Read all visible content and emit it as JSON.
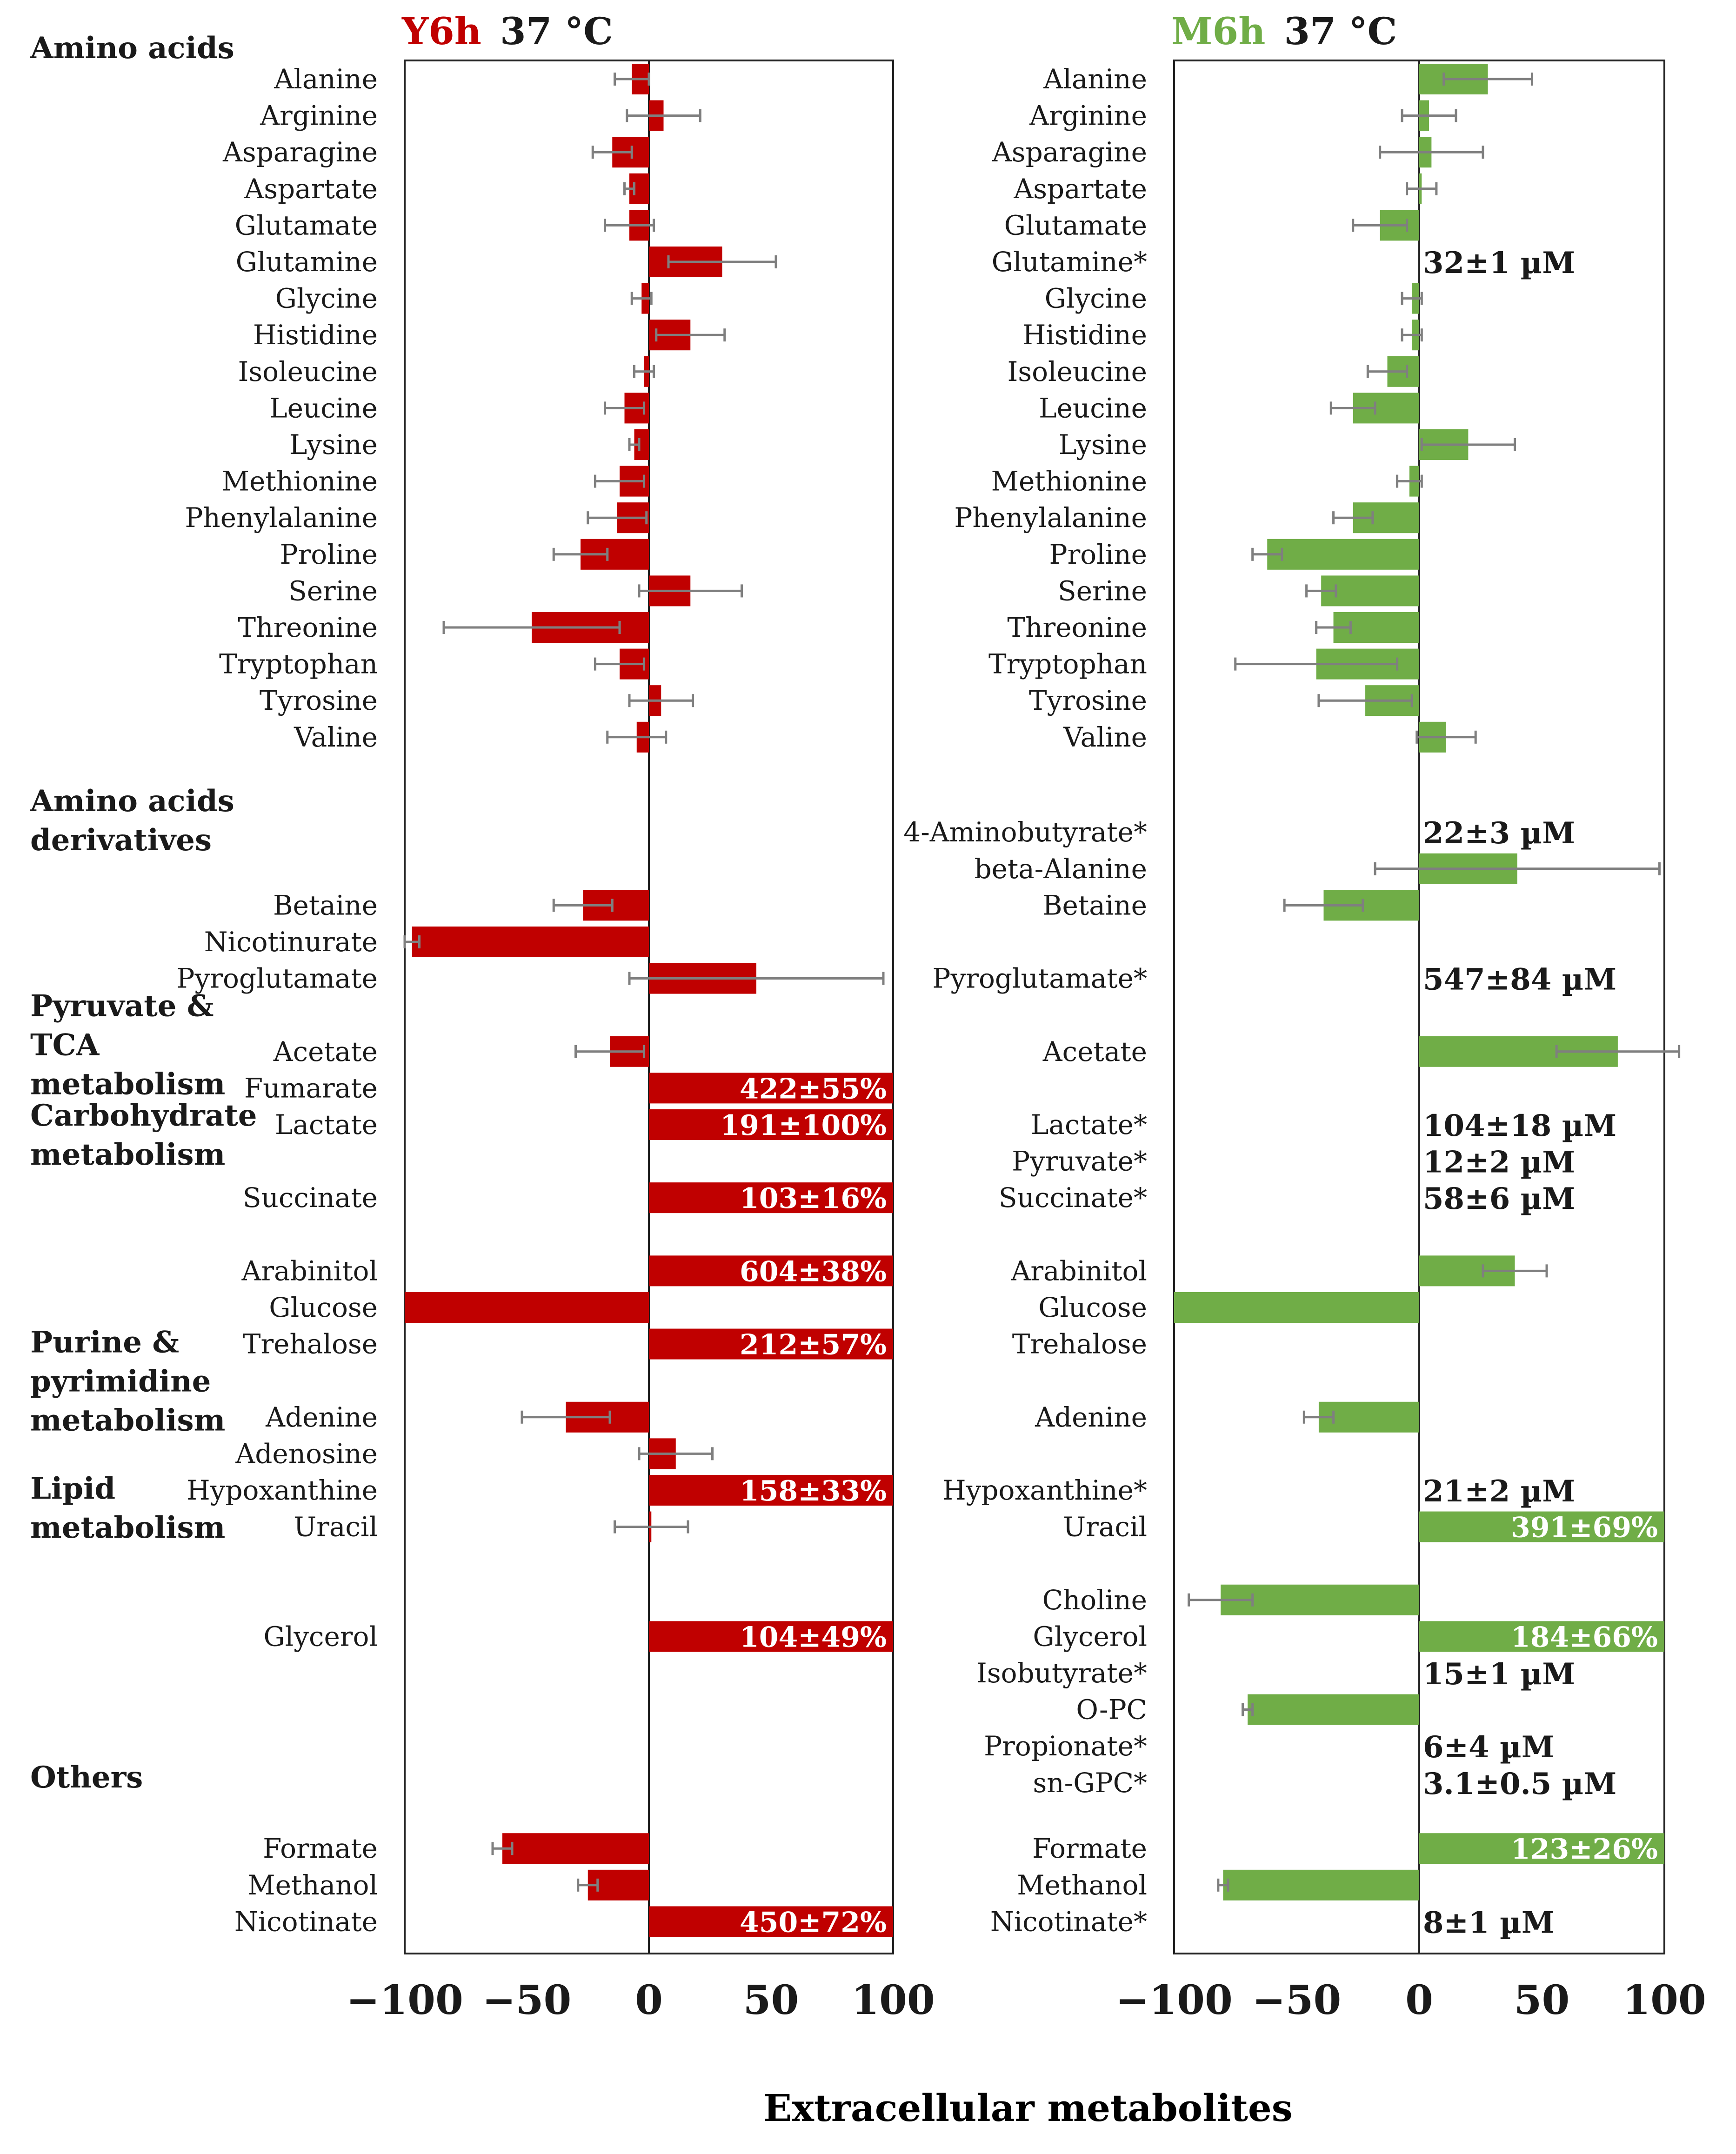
{
  "chart_data": [
    {
      "type": "bar",
      "orientation": "horizontal",
      "condition": "Y6h",
      "temperature": "37 °C",
      "color": "#c00000",
      "xlim": [
        -100,
        100
      ],
      "xticks": [
        "−100",
        "−50",
        "0",
        "50",
        "100"
      ],
      "groups": [
        {
          "title": [
            "Amino acids"
          ],
          "first_row": 0
        },
        {
          "title": [
            "Amino acids",
            "derivatives"
          ],
          "first_row": 20.6
        },
        {
          "title": [
            "Pyruvate &",
            "TCA",
            "metabolism"
          ],
          "first_row": 26.2
        },
        {
          "title": [
            "Carbohydrate",
            "metabolism"
          ],
          "first_row": 29.2
        },
        {
          "title": [
            "Purine &",
            "pyrimidine",
            "metabolism"
          ],
          "first_row": 35.4
        },
        {
          "title": [
            "Lipid",
            "metabolism"
          ],
          "first_row": 39.4
        },
        {
          "title": [
            "Others"
          ],
          "first_row": 47.3
        }
      ],
      "rows": [
        {
          "label": "Alanine",
          "row": 0,
          "value": -7,
          "error": 7
        },
        {
          "label": "Arginine",
          "row": 1,
          "value": 6,
          "error": 15
        },
        {
          "label": "Asparagine",
          "row": 2,
          "value": -15,
          "error": 8
        },
        {
          "label": "Aspartate",
          "row": 3,
          "value": -8,
          "error": 2
        },
        {
          "label": "Glutamate",
          "row": 4,
          "value": -8,
          "error": 10
        },
        {
          "label": "Glutamine",
          "row": 5,
          "value": 30,
          "error": 22
        },
        {
          "label": "Glycine",
          "row": 6,
          "value": -3,
          "error": 4
        },
        {
          "label": "Histidine",
          "row": 7,
          "value": 17,
          "error": 14
        },
        {
          "label": "Isoleucine",
          "row": 8,
          "value": -2,
          "error": 4
        },
        {
          "label": "Leucine",
          "row": 9,
          "value": -10,
          "error": 8
        },
        {
          "label": "Lysine",
          "row": 10,
          "value": -6,
          "error": 2
        },
        {
          "label": "Methionine",
          "row": 11,
          "value": -12,
          "error": 10
        },
        {
          "label": "Phenylalanine",
          "row": 12,
          "value": -13,
          "error": 12
        },
        {
          "label": "Proline",
          "row": 13,
          "value": -28,
          "error": 11
        },
        {
          "label": "Serine",
          "row": 14,
          "value": 17,
          "error": 21
        },
        {
          "label": "Threonine",
          "row": 15,
          "value": -48,
          "error": 36
        },
        {
          "label": "Tryptophan",
          "row": 16,
          "value": -12,
          "error": 10
        },
        {
          "label": "Tyrosine",
          "row": 17,
          "value": 5,
          "error": 13
        },
        {
          "label": "Valine",
          "row": 18,
          "value": -5,
          "error": 12
        },
        {
          "label": "Betaine",
          "row": 22.6,
          "value": -27,
          "error": 12
        },
        {
          "label": "Nicotinurate",
          "row": 23.6,
          "value": -97,
          "error": 3
        },
        {
          "label": "Pyroglutamate",
          "row": 24.6,
          "value": 44,
          "error": 52
        },
        {
          "label": "Acetate",
          "row": 26.6,
          "value": -16,
          "error": 14
        },
        {
          "label": "Fumarate",
          "row": 27.6,
          "value": 100,
          "clip_label": "422±55%"
        },
        {
          "label": "Lactate",
          "row": 28.6,
          "value": 100,
          "clip_label": "191±100%"
        },
        {
          "label": "Succinate",
          "row": 30.6,
          "value": 100,
          "clip_label": "103±16%"
        },
        {
          "label": "Arabinitol",
          "row": 32.6,
          "value": 100,
          "clip_label": "604±38%"
        },
        {
          "label": "Glucose",
          "row": 33.6,
          "value": -100,
          "error": 0
        },
        {
          "label": "Trehalose",
          "row": 34.6,
          "value": 100,
          "clip_label": "212±57%"
        },
        {
          "label": "Adenine",
          "row": 36.6,
          "value": -34,
          "error": 18
        },
        {
          "label": "Adenosine",
          "row": 37.6,
          "value": 11,
          "error": 15
        },
        {
          "label": "Hypoxanthine",
          "row": 38.6,
          "value": 100,
          "clip_label": "158±33%"
        },
        {
          "label": "Uracil",
          "row": 39.6,
          "value": 1,
          "error": 15
        },
        {
          "label": "Glycerol",
          "row": 42.6,
          "value": 100,
          "clip_label": "104±49%"
        },
        {
          "label": "Formate",
          "row": 48.4,
          "value": -60,
          "error": 4
        },
        {
          "label": "Methanol",
          "row": 49.4,
          "value": -25,
          "error": 4
        },
        {
          "label": "Nicotinate",
          "row": 50.4,
          "value": 100,
          "clip_label": "450±72%"
        }
      ]
    },
    {
      "type": "bar",
      "orientation": "horizontal",
      "condition": "M6h",
      "temperature": "37 °C",
      "color": "#70ad47",
      "xlim": [
        -100,
        100
      ],
      "xticks": [
        "−100",
        "−50",
        "0",
        "50",
        "100"
      ],
      "rows": [
        {
          "label": "Alanine",
          "row": 0,
          "value": 28,
          "error": 18
        },
        {
          "label": "Arginine",
          "row": 1,
          "value": 4,
          "error": 11
        },
        {
          "label": "Asparagine",
          "row": 2,
          "value": 5,
          "error": 21
        },
        {
          "label": "Aspartate",
          "row": 3,
          "value": 1,
          "error": 6
        },
        {
          "label": "Glutamate",
          "row": 4,
          "value": -16,
          "error": 11
        },
        {
          "label": "Glutamine*",
          "row": 5,
          "concentration": "32±1 µM"
        },
        {
          "label": "Glycine",
          "row": 6,
          "value": -3,
          "error": 4
        },
        {
          "label": "Histidine",
          "row": 7,
          "value": -3,
          "error": 4
        },
        {
          "label": "Isoleucine",
          "row": 8,
          "value": -13,
          "error": 8
        },
        {
          "label": "Leucine",
          "row": 9,
          "value": -27,
          "error": 9
        },
        {
          "label": "Lysine",
          "row": 10,
          "value": 20,
          "error": 19
        },
        {
          "label": "Methionine",
          "row": 11,
          "value": -4,
          "error": 5
        },
        {
          "label": "Phenylalanine",
          "row": 12,
          "value": -27,
          "error": 8
        },
        {
          "label": "Proline",
          "row": 13,
          "value": -62,
          "error": 6
        },
        {
          "label": "Serine",
          "row": 14,
          "value": -40,
          "error": 6
        },
        {
          "label": "Threonine",
          "row": 15,
          "value": -35,
          "error": 7
        },
        {
          "label": "Tryptophan",
          "row": 16,
          "value": -42,
          "error": 33
        },
        {
          "label": "Tyrosine",
          "row": 17,
          "value": -22,
          "error": 19
        },
        {
          "label": "Valine",
          "row": 18,
          "value": 11,
          "error": 12
        },
        {
          "label": "4-Aminobutyrate*",
          "row": 20.6,
          "concentration": "22±3 µM"
        },
        {
          "label": "beta-Alanine",
          "row": 21.6,
          "value": 40,
          "error": 58
        },
        {
          "label": "Betaine",
          "row": 22.6,
          "value": -39,
          "error": 16
        },
        {
          "label": "Pyroglutamate*",
          "row": 24.6,
          "concentration": "547±84 µM"
        },
        {
          "label": "Acetate",
          "row": 26.6,
          "value": 81,
          "error": 25
        },
        {
          "label": "Lactate*",
          "row": 28.6,
          "concentration": "104±18 µM"
        },
        {
          "label": "Pyruvate*",
          "row": 29.6,
          "concentration": "12±2 µM"
        },
        {
          "label": "Succinate*",
          "row": 30.6,
          "concentration": "58±6 µM"
        },
        {
          "label": "Arabinitol",
          "row": 32.6,
          "value": 39,
          "error": 13
        },
        {
          "label": "Glucose",
          "row": 33.6,
          "value": -100,
          "error": 0
        },
        {
          "label": "Trehalose",
          "row": 34.6
        },
        {
          "label": "Adenine",
          "row": 36.6,
          "value": -41,
          "error": 6
        },
        {
          "label": "Hypoxanthine*",
          "row": 38.6,
          "concentration": "21±2 µM"
        },
        {
          "label": "Uracil",
          "row": 39.6,
          "value": 100,
          "clip_label": "391±69%"
        },
        {
          "label": "Choline",
          "row": 41.6,
          "value": -81,
          "error": 13
        },
        {
          "label": "Glycerol",
          "row": 42.6,
          "value": 100,
          "clip_label": "184±66%"
        },
        {
          "label": "Isobutyrate*",
          "row": 43.6,
          "concentration": "15±1 µM"
        },
        {
          "label": "O-PC",
          "row": 44.6,
          "value": -70,
          "error": 2
        },
        {
          "label": "Propionate*",
          "row": 45.6,
          "concentration": "6±4 µM"
        },
        {
          "label": "sn-GPC*",
          "row": 46.6,
          "concentration": "3.1±0.5 µM"
        },
        {
          "label": "Formate",
          "row": 48.4,
          "value": 100,
          "clip_label": "123±26%"
        },
        {
          "label": "Methanol",
          "row": 49.4,
          "value": -80,
          "error": 2
        },
        {
          "label": "Nicotinate*",
          "row": 50.4,
          "concentration": "8±1 µM"
        }
      ]
    }
  ],
  "xlabel": "Extracellular metabolites"
}
